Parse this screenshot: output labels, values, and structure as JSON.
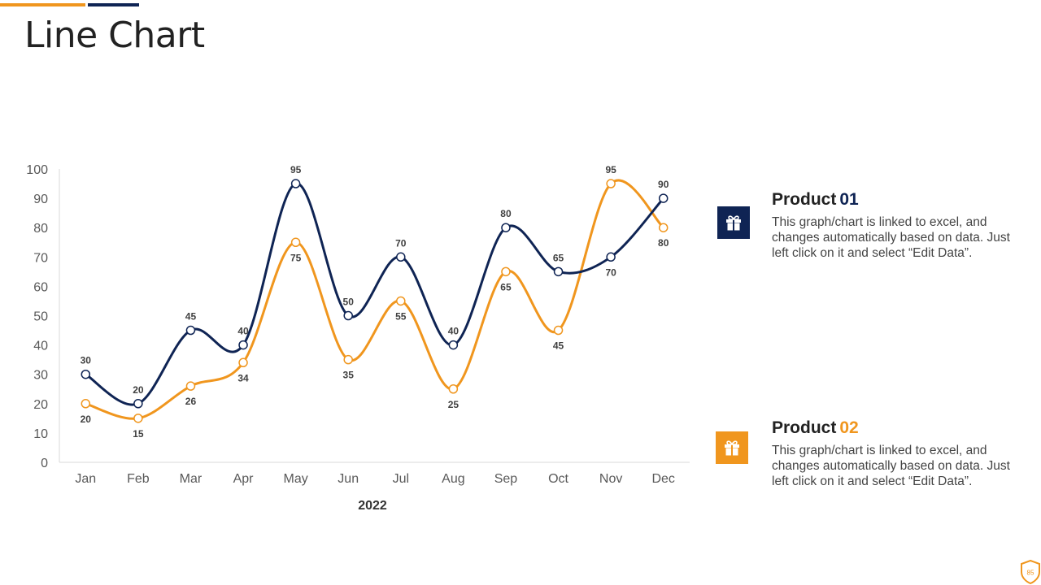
{
  "header": {
    "title": "Line Chart",
    "accent_colors": [
      "#F0961E",
      "#0F2454"
    ]
  },
  "chart_data": {
    "type": "line",
    "title": "Line Chart",
    "xlabel": "2022",
    "ylabel": "",
    "ylim": [
      0,
      100
    ],
    "yticks": [
      0,
      10,
      20,
      30,
      40,
      50,
      60,
      70,
      80,
      90,
      100
    ],
    "categories": [
      "Jan",
      "Feb",
      "Mar",
      "Apr",
      "May",
      "Jun",
      "Jul",
      "Aug",
      "Sep",
      "Oct",
      "Nov",
      "Dec"
    ],
    "grid": false,
    "series": [
      {
        "name": "Product 01",
        "color": "#0F2454",
        "values": [
          30,
          20,
          45,
          40,
          95,
          50,
          70,
          40,
          80,
          65,
          70,
          90
        ]
      },
      {
        "name": "Product 02",
        "color": "#F0961E",
        "values": [
          20,
          15,
          26,
          34,
          75,
          35,
          55,
          25,
          65,
          45,
          95,
          80
        ]
      }
    ]
  },
  "legend": {
    "product1": {
      "title": "Product",
      "number": "01",
      "description": "This graph/chart is linked to excel, and changes automatically based on data. Just left click on it and select “Edit Data”.",
      "icon": "gift-icon",
      "color": "#0F2454"
    },
    "product2": {
      "title": "Product",
      "number": "02",
      "description": "This graph/chart is linked to excel, and changes automatically based on data. Just left click on it and select “Edit Data”.",
      "icon": "gift-icon",
      "color": "#F0961E"
    }
  },
  "footer": {
    "page_number": "85",
    "badge_color": "#F0961E"
  }
}
